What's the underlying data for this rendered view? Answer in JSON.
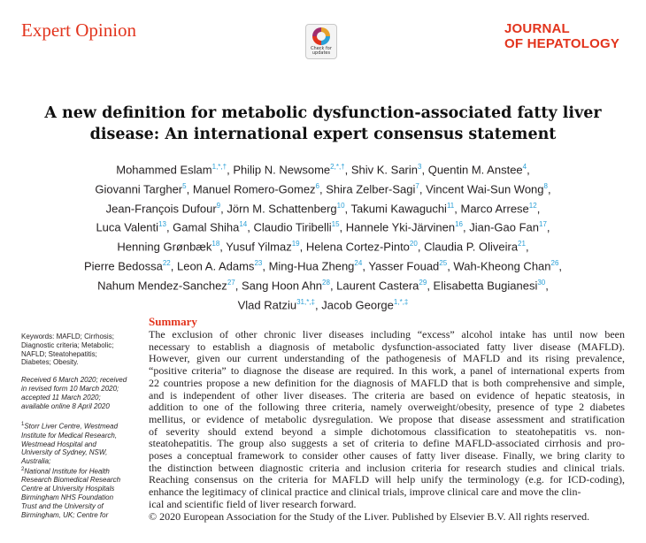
{
  "header": {
    "section_label": "Expert Opinion",
    "badge_line1": "Check for",
    "badge_line2": "updates",
    "journal_line1": "JOURNAL",
    "journal_line2": "OF HEPATOLOGY"
  },
  "title": {
    "line1": "A new definition for metabolic dysfunction-associated fatty liver",
    "line2": "disease: An international expert consensus statement"
  },
  "authors": [
    [
      {
        "name": "Mohammed Eslam",
        "aff": "1,*,†"
      },
      {
        "name": "Philip N. Newsome",
        "aff": "2,*,†"
      },
      {
        "name": "Shiv K. Sarin",
        "aff": "3"
      },
      {
        "name": "Quentin M. Anstee",
        "aff": "4"
      }
    ],
    [
      {
        "name": "Giovanni Targher",
        "aff": "5"
      },
      {
        "name": "Manuel Romero-Gomez",
        "aff": "6"
      },
      {
        "name": "Shira Zelber-Sagi",
        "aff": "7"
      },
      {
        "name": "Vincent Wai-Sun Wong",
        "aff": "8"
      }
    ],
    [
      {
        "name": "Jean-François Dufour",
        "aff": "9"
      },
      {
        "name": "Jörn M. Schattenberg",
        "aff": "10"
      },
      {
        "name": "Takumi Kawaguchi",
        "aff": "11"
      },
      {
        "name": "Marco Arrese",
        "aff": "12"
      }
    ],
    [
      {
        "name": "Luca Valenti",
        "aff": "13"
      },
      {
        "name": "Gamal Shiha",
        "aff": "14"
      },
      {
        "name": "Claudio Tiribelli",
        "aff": "15"
      },
      {
        "name": "Hannele Yki-Järvinen",
        "aff": "16"
      },
      {
        "name": "Jian-Gao Fan",
        "aff": "17"
      }
    ],
    [
      {
        "name": "Henning Grønbæk",
        "aff": "18"
      },
      {
        "name": "Yusuf Yilmaz",
        "aff": "19"
      },
      {
        "name": "Helena Cortez-Pinto",
        "aff": "20"
      },
      {
        "name": "Claudia P. Oliveira",
        "aff": "21"
      }
    ],
    [
      {
        "name": "Pierre Bedossa",
        "aff": "22"
      },
      {
        "name": "Leon A. Adams",
        "aff": "23"
      },
      {
        "name": "Ming-Hua Zheng",
        "aff": "24"
      },
      {
        "name": "Yasser Fouad",
        "aff": "25"
      },
      {
        "name": "Wah-Kheong Chan",
        "aff": "26"
      }
    ],
    [
      {
        "name": "Nahum Mendez-Sanchez",
        "aff": "27"
      },
      {
        "name": "Sang Hoon Ahn",
        "aff": "28"
      },
      {
        "name": "Laurent Castera",
        "aff": "29"
      },
      {
        "name": "Elisabetta Bugianesi",
        "aff": "30"
      }
    ],
    [
      {
        "name": "Vlad Ratziu",
        "aff": "31,*,‡"
      },
      {
        "name": "Jacob George",
        "aff": "1,*,‡"
      }
    ]
  ],
  "sidebar": {
    "keywords": [
      "Keywords: MAFLD; Cirrhosis;",
      "Diagnostic criteria; Metabolic;",
      "NAFLD; Steatohepatitis;",
      "Diabetes; Obesity."
    ],
    "dates": [
      "Received 6 March 2020; received",
      "in revised form 10 March 2020;",
      "accepted 11 March 2020;",
      "available online 8 April 2020"
    ],
    "affil_mark1": "1",
    "affil1": [
      "Storr Liver Centre, Westmead",
      "Institute for Medical Research,",
      "Westmead Hospital and",
      "University of Sydney, NSW,",
      "Australia;"
    ],
    "affil_mark2": "2",
    "affil2": [
      "National Institute for Health",
      "Research Biomedical Research",
      "Centre at University Hospitals",
      "Birmingham NHS Foundation",
      "Trust and the University of",
      "Birmingham, UK; Centre for"
    ]
  },
  "summary": {
    "heading": "Summary",
    "lines": [
      "The exclusion of other chronic liver diseases including “excess” alcohol intake has until now been",
      "necessary to establish a diagnosis of metabolic dysfunction-associated fatty liver disease (MAFLD).",
      "However, given our current understanding of the pathogenesis of MAFLD and its rising prevalence,",
      "“positive criteria” to diagnose the disease are required. In this work, a panel of international experts from",
      "22 countries propose a new definition for the diagnosis of MAFLD that is both comprehensive and simple,",
      "and is independent of other liver diseases. The criteria are based on evidence of hepatic steatosis, in",
      "addition to one of the following three criteria, namely overweight/obesity, presence of type 2 diabetes",
      "mellitus, or evidence of metabolic dysregulation. We propose that disease assessment and stratification",
      "of severity should extend beyond a simple dichotomous classification to steatohepatitis vs. non-",
      "steatohepatitis. The group also suggests a set of criteria to define MAFLD-associated cirrhosis and pro-",
      "poses a conceptual framework to consider other causes of fatty liver disease. Finally, we bring clarity to",
      "the distinction between diagnostic criteria and inclusion criteria for research studies and clinical trials.",
      "Reaching consensus on the criteria for MAFLD will help unify the terminology (e.g. for ICD-coding),",
      "enhance the legitimacy of clinical practice and clinical trials, improve clinical care and move the clin-",
      "ical and scientific field of liver research forward.",
      "© 2020 European Association for the Study of the Liver. Published by Elsevier B.V. All rights reserved."
    ]
  }
}
